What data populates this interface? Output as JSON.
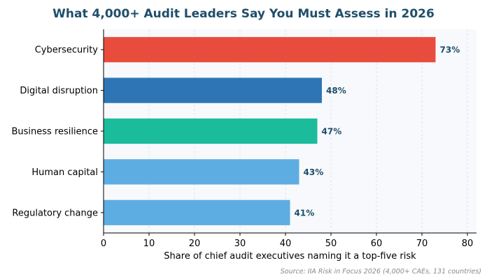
{
  "chart_data": {
    "type": "bar",
    "orientation": "horizontal",
    "title": "What 4,000+ Audit Leaders Say You Must Assess in 2026",
    "categories": [
      "Cybersecurity",
      "Digital disruption",
      "Business resilience",
      "Human capital",
      "Regulatory change"
    ],
    "values": [
      73,
      48,
      47,
      43,
      41
    ],
    "value_labels": [
      "73%",
      "48%",
      "47%",
      "43%",
      "41%"
    ],
    "bar_colors": [
      "#e84c3d",
      "#2e75b6",
      "#1abc9c",
      "#5dade2",
      "#5dade2"
    ],
    "xlabel": "Share of chief audit executives naming it a top-five risk",
    "ylabel": "",
    "xlim": [
      0,
      82
    ],
    "xticks": [
      0,
      10,
      20,
      30,
      40,
      50,
      60,
      70,
      80
    ],
    "grid": "vertical dashed",
    "plot_background": "#f7f9fc",
    "label_color": "#1f4e6b",
    "source": "Source: IIA Risk in Focus 2026 (4,000+ CAEs, 131 countries)"
  }
}
